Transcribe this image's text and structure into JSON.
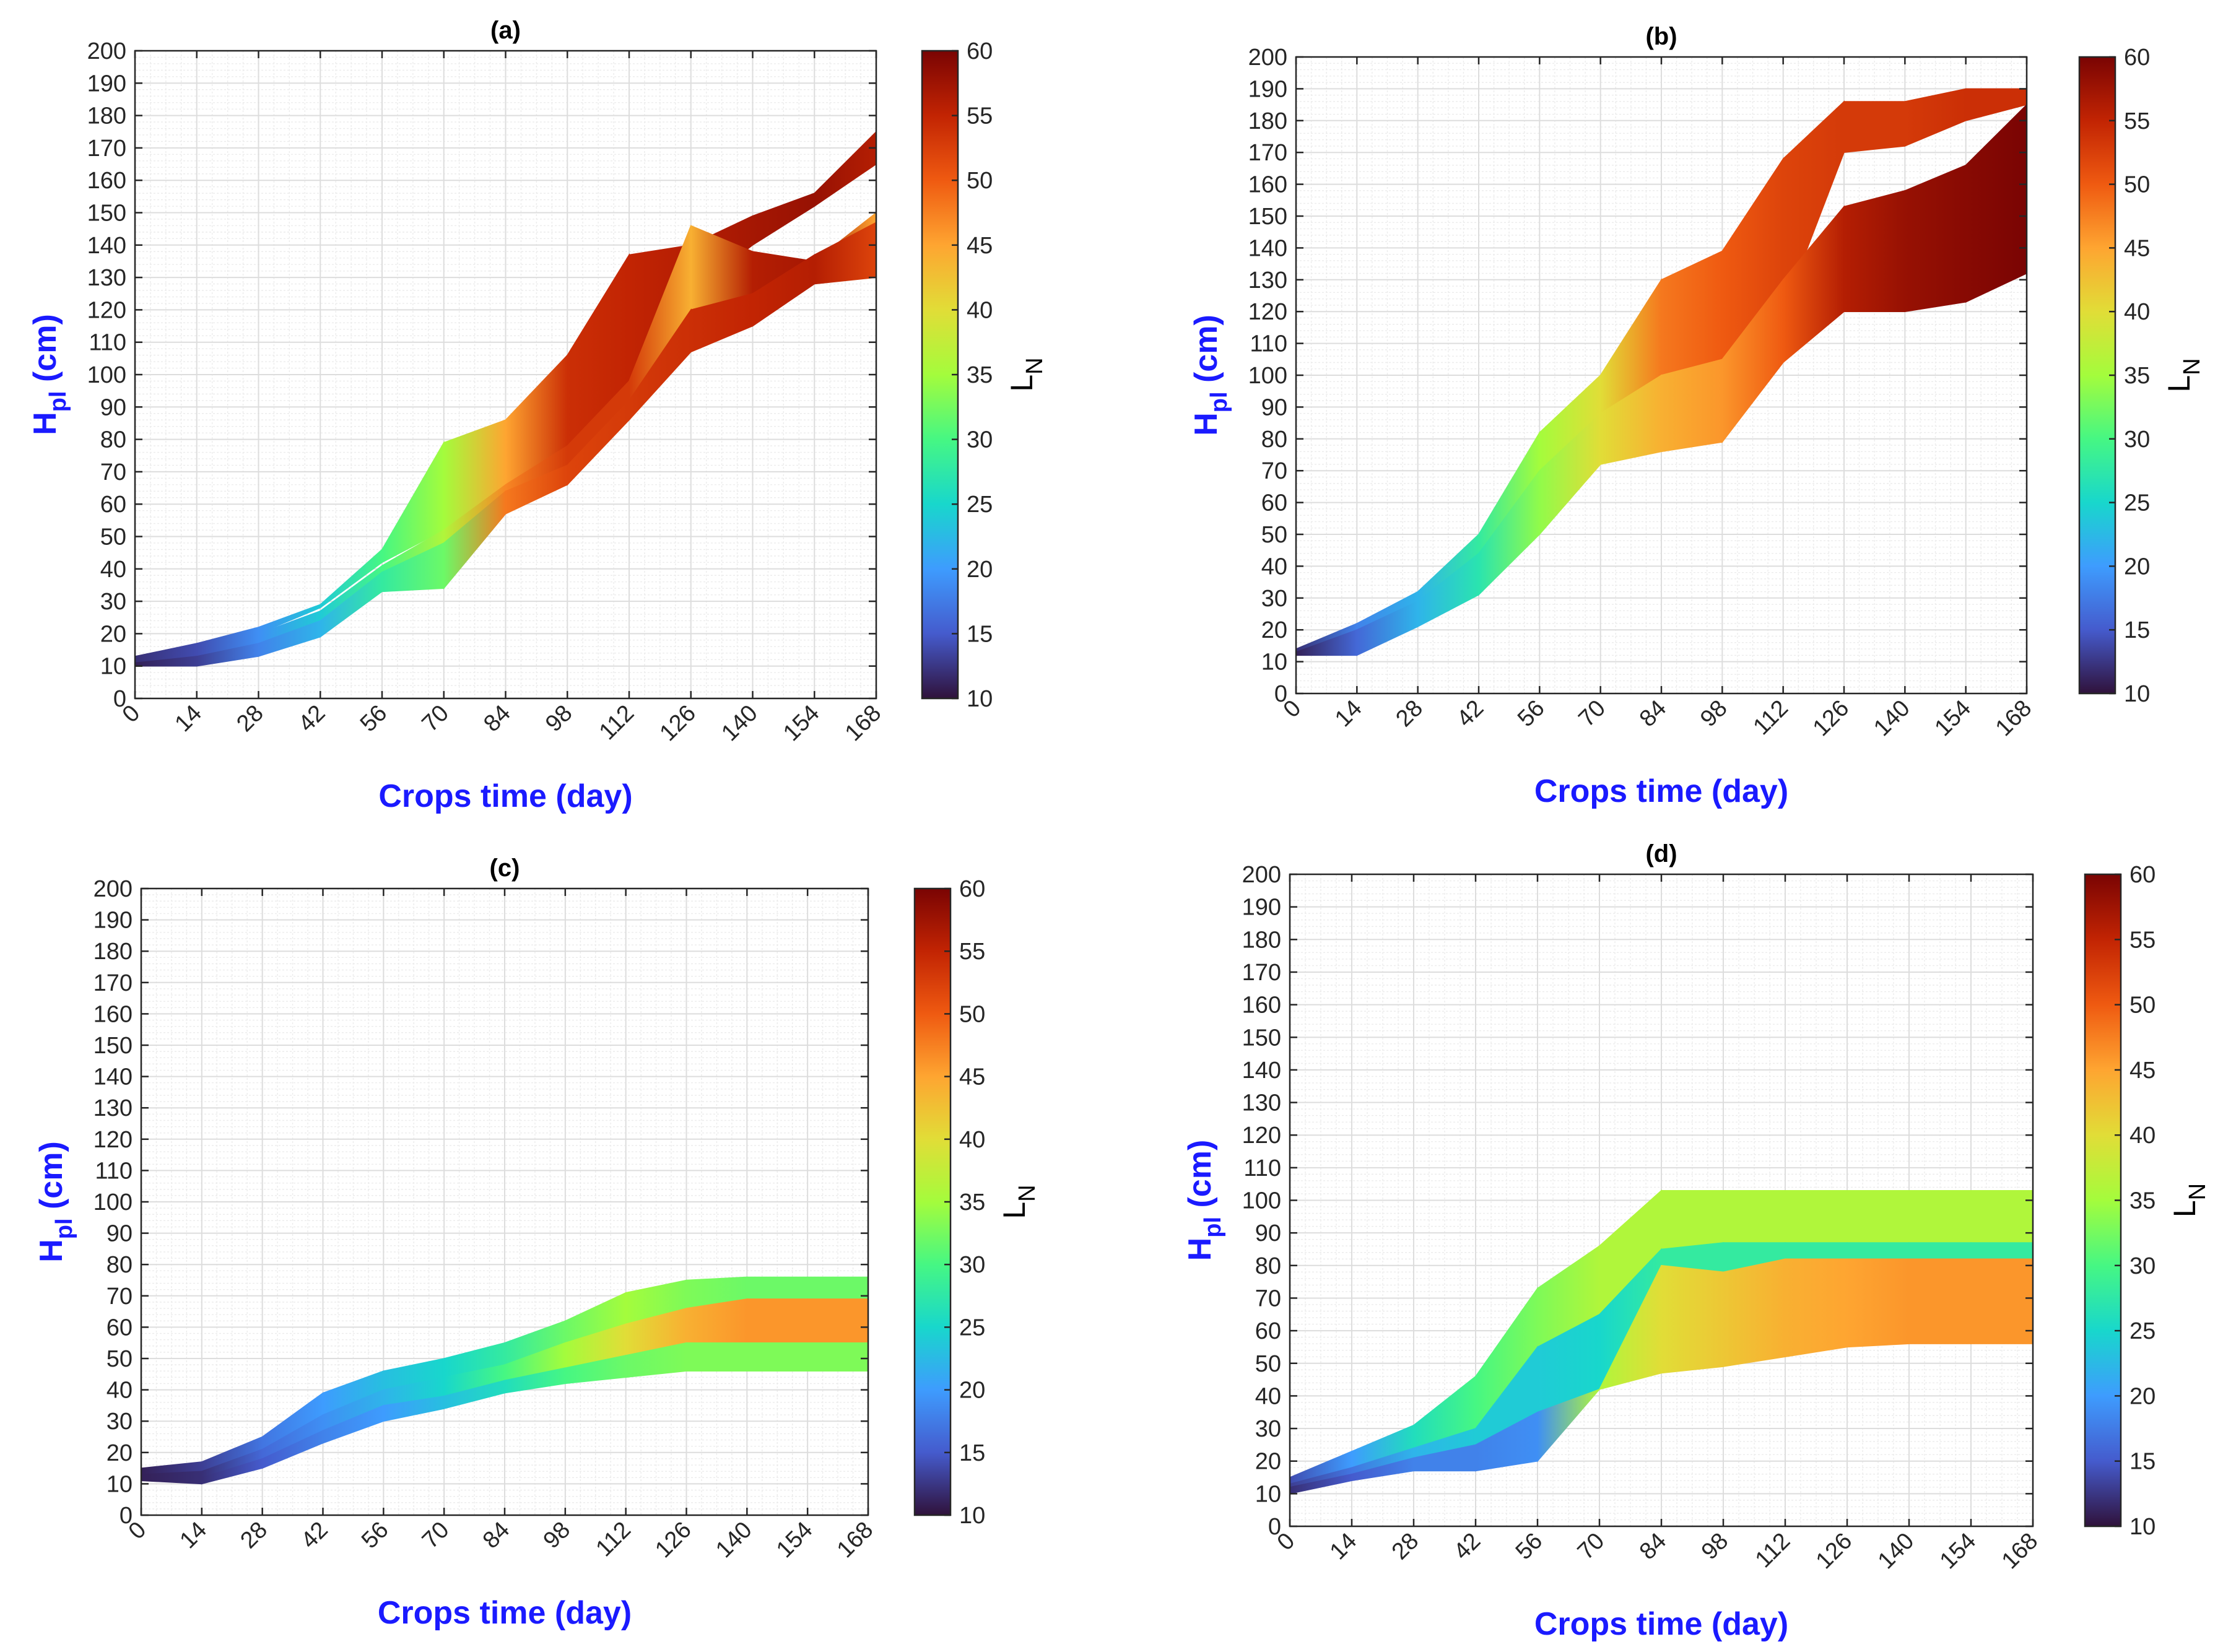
{
  "figure": {
    "colormap": "turbo",
    "colors": {
      "ylabel": "#1a1aff",
      "xlabel": "#1a1aff",
      "grid": "#dddddd",
      "axis": "#262626"
    }
  },
  "chart_data": [
    {
      "type": "area",
      "title": "(a)",
      "xlabel": "Crops time (day)",
      "ylabel_main": "H",
      "ylabel_sub": "pl",
      "ylabel_unit": " (cm)",
      "xticks": [
        0,
        14,
        28,
        42,
        56,
        70,
        84,
        98,
        112,
        126,
        140,
        154,
        168
      ],
      "yticks": [
        0,
        10,
        20,
        30,
        40,
        50,
        60,
        70,
        80,
        90,
        100,
        110,
        120,
        130,
        140,
        150,
        160,
        170,
        180,
        190,
        200
      ],
      "xlim": [
        0,
        168
      ],
      "ylim": [
        0,
        200
      ],
      "colorbar": {
        "label_main": "L",
        "label_sub": "N",
        "range": [
          10,
          60
        ],
        "ticks": [
          10,
          15,
          20,
          25,
          30,
          35,
          40,
          45,
          50,
          55,
          60
        ]
      },
      "bands": [
        {
          "name": "upper",
          "x": [
            0,
            14,
            28,
            42,
            56,
            70,
            84,
            98,
            112,
            126,
            140,
            154,
            168
          ],
          "upper": [
            13,
            17,
            22,
            29,
            46,
            79,
            86,
            106,
            137,
            140,
            149,
            156,
            175
          ],
          "lower": [
            12,
            15,
            20,
            28,
            42,
            52,
            65,
            75,
            95,
            125,
            140,
            152,
            165
          ],
          "ln": [
            12,
            14,
            19,
            24,
            30,
            35,
            45,
            54,
            55,
            56,
            57,
            58,
            56
          ]
        },
        {
          "name": "middle",
          "x": [
            0,
            14,
            28,
            42,
            56,
            70,
            84,
            98,
            112,
            126,
            140,
            154,
            168
          ],
          "upper": [
            12,
            15,
            20,
            27,
            41,
            52,
            66,
            78,
            98,
            146,
            138,
            135,
            150
          ],
          "lower": [
            11,
            12,
            15,
            23,
            36,
            45,
            62,
            70,
            88,
            118,
            122,
            134,
            140
          ],
          "ln": [
            12,
            14,
            19,
            24,
            30,
            36,
            47,
            53,
            53,
            44,
            56,
            57,
            45
          ]
        },
        {
          "name": "lower",
          "x": [
            0,
            14,
            28,
            42,
            56,
            70,
            84,
            98,
            112,
            126,
            140,
            154,
            168
          ],
          "upper": [
            11,
            13,
            17,
            24,
            39,
            48,
            64,
            72,
            92,
            120,
            125,
            137,
            147
          ],
          "lower": [
            10,
            10,
            13,
            19,
            33,
            34,
            57,
            66,
            86,
            107,
            115,
            128,
            130
          ],
          "ln": [
            11,
            13,
            18,
            22,
            28,
            32,
            48,
            52,
            53,
            54,
            55,
            56,
            52
          ]
        }
      ]
    },
    {
      "type": "area",
      "title": "(b)",
      "xlabel": "Crops time (day)",
      "ylabel_main": "H",
      "ylabel_sub": "pl",
      "ylabel_unit": " (cm)",
      "xticks": [
        0,
        14,
        28,
        42,
        56,
        70,
        84,
        98,
        112,
        126,
        140,
        154,
        168
      ],
      "yticks": [
        0,
        10,
        20,
        30,
        40,
        50,
        60,
        70,
        80,
        90,
        100,
        110,
        120,
        130,
        140,
        150,
        160,
        170,
        180,
        190,
        200
      ],
      "xlim": [
        0,
        168
      ],
      "ylim": [
        0,
        200
      ],
      "colorbar": {
        "label_main": "L",
        "label_sub": "N",
        "range": [
          10,
          60
        ],
        "ticks": [
          10,
          15,
          20,
          25,
          30,
          35,
          40,
          45,
          50,
          55,
          60
        ]
      },
      "bands": [
        {
          "name": "upper",
          "x": [
            0,
            14,
            28,
            42,
            56,
            70,
            84,
            98,
            112,
            126,
            140,
            154,
            168
          ],
          "upper": [
            14,
            22,
            32,
            50,
            82,
            100,
            130,
            139,
            168,
            186,
            186,
            190,
            190
          ],
          "lower": [
            12,
            18,
            26,
            40,
            62,
            82,
            92,
            100,
            120,
            170,
            172,
            180,
            185
          ],
          "ln": [
            12,
            18,
            22,
            28,
            35,
            40,
            48,
            50,
            52,
            53,
            53,
            54,
            54
          ]
        },
        {
          "name": "lower",
          "x": [
            0,
            14,
            28,
            42,
            56,
            70,
            84,
            98,
            112,
            126,
            140,
            154,
            168
          ],
          "upper": [
            13,
            20,
            29,
            44,
            70,
            88,
            100,
            105,
            130,
            153,
            158,
            166,
            185
          ],
          "lower": [
            12,
            12,
            21,
            31,
            50,
            72,
            76,
            79,
            104,
            120,
            120,
            123,
            132
          ],
          "ln": [
            11,
            16,
            22,
            27,
            34,
            40,
            44,
            46,
            50,
            56,
            58,
            59,
            60
          ]
        }
      ]
    },
    {
      "type": "area",
      "title": "(c)",
      "xlabel": "Crops time (day)",
      "ylabel_main": "H",
      "ylabel_sub": "pl",
      "ylabel_unit": " (cm)",
      "xticks": [
        0,
        14,
        28,
        42,
        56,
        70,
        84,
        98,
        112,
        126,
        140,
        154,
        168
      ],
      "yticks": [
        0,
        10,
        20,
        30,
        40,
        50,
        60,
        70,
        80,
        90,
        100,
        110,
        120,
        130,
        140,
        150,
        160,
        170,
        180,
        190,
        200
      ],
      "xlim": [
        0,
        168
      ],
      "ylim": [
        0,
        200
      ],
      "colorbar": {
        "label_main": "L",
        "label_sub": "N",
        "range": [
          10,
          60
        ],
        "ticks": [
          10,
          15,
          20,
          25,
          30,
          35,
          40,
          45,
          50,
          55,
          60
        ]
      },
      "bands": [
        {
          "name": "upper",
          "x": [
            0,
            14,
            28,
            42,
            56,
            70,
            84,
            98,
            112,
            126,
            140,
            154,
            168
          ],
          "upper": [
            15,
            17,
            25,
            39,
            46,
            50,
            55,
            62,
            71,
            75,
            76,
            76,
            76
          ],
          "lower": [
            13,
            14,
            21,
            32,
            40,
            44,
            48,
            55,
            61,
            66,
            69,
            69,
            69
          ],
          "ln": [
            11,
            13,
            17,
            20,
            23,
            25,
            28,
            32,
            35,
            33,
            32,
            32,
            32
          ]
        },
        {
          "name": "middle",
          "x": [
            0,
            14,
            28,
            42,
            56,
            70,
            84,
            98,
            112,
            126,
            140,
            154,
            168
          ],
          "upper": [
            13,
            14,
            21,
            32,
            40,
            44,
            48,
            55,
            61,
            66,
            69,
            69,
            69
          ],
          "lower": [
            12,
            12,
            18,
            27,
            35,
            38,
            43,
            47,
            51,
            55,
            55,
            55,
            55
          ],
          "ln": [
            11,
            12,
            16,
            19,
            22,
            25,
            30,
            35,
            40,
            44,
            46,
            46,
            46
          ]
        },
        {
          "name": "lower",
          "x": [
            0,
            14,
            28,
            42,
            56,
            70,
            84,
            98,
            112,
            126,
            140,
            154,
            168
          ],
          "upper": [
            12,
            12,
            18,
            27,
            35,
            38,
            43,
            47,
            51,
            55,
            55,
            55,
            55
          ],
          "lower": [
            11,
            10,
            15,
            23,
            30,
            34,
            39,
            42,
            44,
            46,
            46,
            46,
            46
          ],
          "ln": [
            11,
            12,
            15,
            18,
            20,
            23,
            26,
            30,
            32,
            33,
            33,
            33,
            33
          ]
        }
      ]
    },
    {
      "type": "area",
      "title": "(d)",
      "xlabel": "Crops time (day)",
      "ylabel_main": "H",
      "ylabel_sub": "pl",
      "ylabel_unit": " (cm)",
      "xticks": [
        0,
        14,
        28,
        42,
        56,
        70,
        84,
        98,
        112,
        126,
        140,
        154,
        168
      ],
      "yticks": [
        0,
        10,
        20,
        30,
        40,
        50,
        60,
        70,
        80,
        90,
        100,
        110,
        120,
        130,
        140,
        150,
        160,
        170,
        180,
        190,
        200
      ],
      "xlim": [
        0,
        168
      ],
      "ylim": [
        0,
        200
      ],
      "colorbar": {
        "label_main": "L",
        "label_sub": "N",
        "range": [
          10,
          60
        ],
        "ticks": [
          10,
          15,
          20,
          25,
          30,
          35,
          40,
          45,
          50,
          55,
          60
        ]
      },
      "bands": [
        {
          "name": "upper",
          "x": [
            0,
            14,
            28,
            42,
            56,
            70,
            84,
            98,
            112,
            126,
            140,
            154,
            168
          ],
          "upper": [
            15,
            23,
            31,
            46,
            73,
            86,
            103,
            103,
            103,
            103,
            103,
            103,
            103
          ],
          "lower": [
            13,
            18,
            24,
            30,
            55,
            65,
            85,
            87,
            87,
            87,
            87,
            87,
            87
          ],
          "ln": [
            14,
            20,
            26,
            30,
            33,
            36,
            36,
            36,
            36,
            36,
            36,
            36,
            36
          ]
        },
        {
          "name": "middle",
          "x": [
            0,
            14,
            28,
            42,
            56,
            70,
            84,
            98,
            112,
            126,
            140,
            154,
            168
          ],
          "upper": [
            13,
            18,
            24,
            30,
            55,
            65,
            85,
            87,
            87,
            87,
            87,
            87,
            87
          ],
          "lower": [
            12,
            16,
            21,
            25,
            35,
            42,
            80,
            78,
            82,
            82,
            82,
            82,
            82
          ],
          "ln": [
            13,
            17,
            22,
            24,
            24,
            25,
            28,
            28,
            28,
            28,
            28,
            28,
            28
          ]
        },
        {
          "name": "lower",
          "x": [
            0,
            14,
            28,
            42,
            56,
            70,
            84,
            98,
            112,
            126,
            140,
            154,
            168
          ],
          "upper": [
            12,
            16,
            21,
            25,
            35,
            42,
            80,
            78,
            82,
            82,
            82,
            82,
            82
          ],
          "lower": [
            10,
            14,
            17,
            17,
            20,
            42,
            47,
            49,
            52,
            55,
            56,
            56,
            56
          ],
          "ln": [
            12,
            15,
            18,
            18,
            19,
            36,
            40,
            42,
            44,
            45,
            46,
            46,
            46
          ]
        }
      ]
    }
  ]
}
